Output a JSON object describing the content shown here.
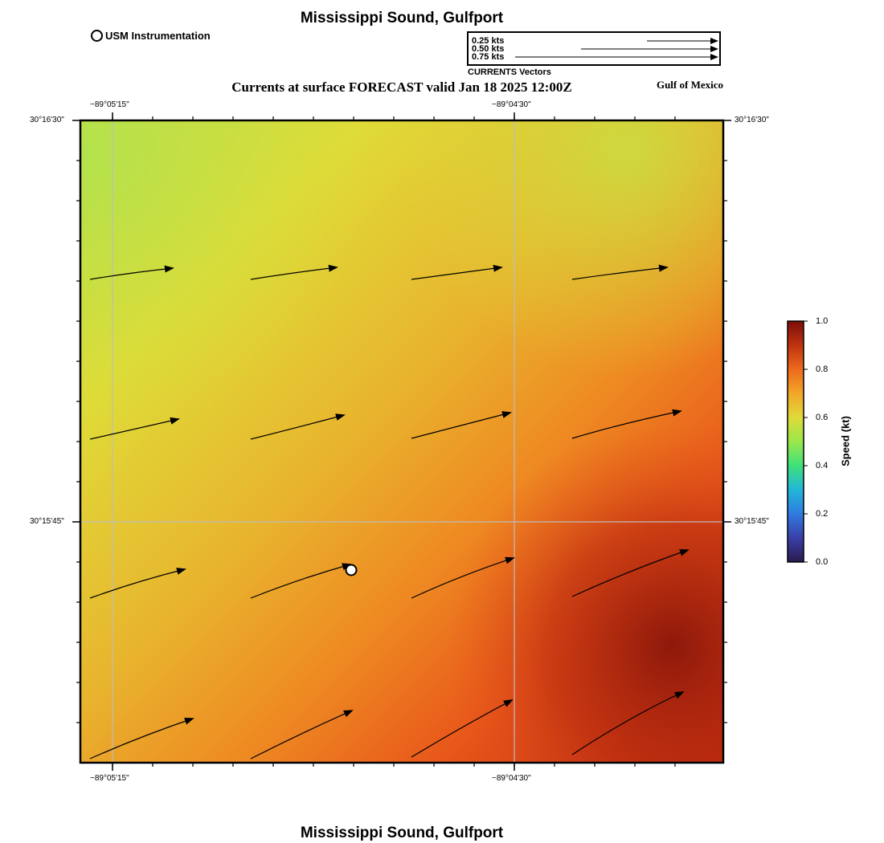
{
  "header": {
    "title": "Mississippi Sound, Gulfport",
    "subtitle": "Currents at surface FORECAST valid Jan 18 2025 12:00Z",
    "region": "Gulf of Mexico",
    "footer_title": "Mississippi Sound, Gulfport"
  },
  "legend": {
    "station_label": "USM Instrumentation",
    "vector_scale": [
      {
        "label": "0.25 kts",
        "speed": 0.25
      },
      {
        "label": "0.50 kts",
        "speed": 0.5
      },
      {
        "label": "0.75 kts",
        "speed": 0.75
      }
    ],
    "vector_caption": "CURRENTS Vectors"
  },
  "axes": {
    "lon_ticks": [
      "−89°05'15\"",
      "−89°04'30\""
    ],
    "lat_ticks": [
      "30°16'30\"",
      "30°15'45\""
    ]
  },
  "colorbar": {
    "title": "Speed (kt)",
    "ticks": [
      "0.0",
      "0.2",
      "0.4",
      "0.6",
      "0.8",
      "1.0"
    ],
    "range": [
      0.0,
      1.0
    ]
  },
  "colors": {
    "low": "#2b1a4e",
    "mid_blue": "#2f7be0",
    "green": "#3ee07a",
    "yellow_green": "#b9e34a",
    "yellow": "#e6d93a",
    "orange": "#ef7b1f",
    "red_orange": "#e5541a",
    "dark_red": "#7a0d0a"
  },
  "station": {
    "name": "USM Instrumentation"
  }
}
